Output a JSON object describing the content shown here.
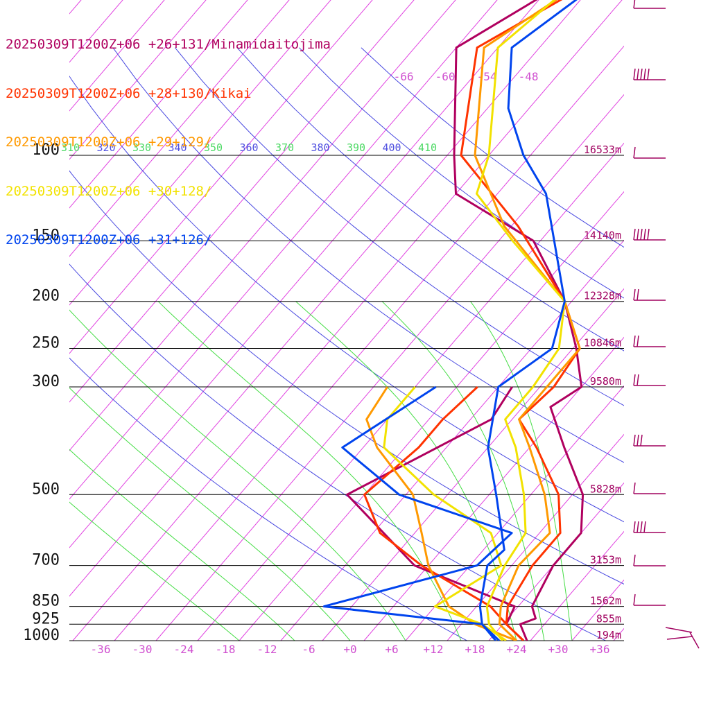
{
  "legend": [
    {
      "label": "20250309T1200Z+06 +26+131/Minamidaitojima",
      "color": "#b0005f"
    },
    {
      "label": "20250309T1200Z+06 +28+130/Kikai",
      "color": "#ff3300"
    },
    {
      "label": "20250309T1200Z+06 +29+129/",
      "color": "#ff9900"
    },
    {
      "label": "20250309T1200Z+06 +30+128/",
      "color": "#f2e200"
    },
    {
      "label": "20250309T1200Z+06 +31+126/",
      "color": "#0044ee"
    }
  ],
  "chart_data": {
    "type": "line",
    "pressure_levels": [
      {
        "label": "100",
        "p": 100
      },
      {
        "label": "150",
        "p": 150
      },
      {
        "label": "200",
        "p": 200
      },
      {
        "label": "250",
        "p": 250
      },
      {
        "label": "300",
        "p": 300
      },
      {
        "label": "500",
        "p": 500
      },
      {
        "label": "700",
        "p": 700
      },
      {
        "label": "850",
        "p": 850
      },
      {
        "label": "925",
        "p": 925
      },
      {
        "label": "1000",
        "p": 1000
      }
    ],
    "height_labels": [
      {
        "p": 100,
        "label": "16533m"
      },
      {
        "p": 150,
        "label": "14140m"
      },
      {
        "p": 200,
        "label": "12328m"
      },
      {
        "p": 250,
        "label": "10846m"
      },
      {
        "p": 300,
        "label": "9580m"
      },
      {
        "p": 500,
        "label": "5828m"
      },
      {
        "p": 700,
        "label": "3153m"
      },
      {
        "p": 850,
        "label": "1562m"
      },
      {
        "p": 925,
        "label": "855m"
      },
      {
        "p": 1000,
        "label": "194m"
      }
    ],
    "temperature_ticks": [
      "-36",
      "-30",
      "-24",
      "-18",
      "-12",
      "-6",
      "+0",
      "+6",
      "+12",
      "+18",
      "+24",
      "+30",
      "+36"
    ],
    "upper_temperature_labels": [
      "-66",
      "-60",
      "-54",
      "-48"
    ],
    "theta_e_labels": [
      {
        "label": "310",
        "color": "#4cd964"
      },
      {
        "label": "320",
        "color": "#5050e0"
      },
      {
        "label": "330",
        "color": "#4cd964"
      },
      {
        "label": "340",
        "color": "#5050e0"
      },
      {
        "label": "350",
        "color": "#4cd964"
      },
      {
        "label": "360",
        "color": "#5050e0"
      },
      {
        "label": "370",
        "color": "#4cd964"
      },
      {
        "label": "380",
        "color": "#5050e0"
      },
      {
        "label": "390",
        "color": "#4cd964"
      },
      {
        "label": "400",
        "color": "#5050e0"
      },
      {
        "label": "410",
        "color": "#4cd964"
      }
    ],
    "series": [
      {
        "name": "20250309T1200Z+06 +26+131/Minamidaitojima",
        "color": "#b0005f",
        "temperature": [
          [
            1000,
            25.5
          ],
          [
            925,
            22.5
          ],
          [
            900,
            24
          ],
          [
            850,
            22
          ],
          [
            700,
            20
          ],
          [
            600,
            20
          ],
          [
            500,
            15.5
          ],
          [
            400,
            7
          ],
          [
            330,
            0
          ],
          [
            300,
            2
          ],
          [
            250,
            -3.5
          ],
          [
            200,
            -11
          ],
          [
            150,
            -23
          ],
          [
            120,
            -40
          ],
          [
            100,
            -45
          ],
          [
            60,
            -58
          ],
          [
            40,
            -48
          ],
          [
            30,
            -42
          ],
          [
            25,
            -35
          ]
        ],
        "dewpoint": [
          [
            1000,
            25
          ],
          [
            925,
            20.5
          ],
          [
            850,
            19.5
          ],
          [
            700,
            0
          ],
          [
            500,
            -18.5
          ],
          [
            350,
            -7
          ],
          [
            300,
            -8
          ]
        ]
      },
      {
        "name": "20250309T1200Z+06 +28+130/Kikai",
        "color": "#ff3300",
        "temperature": [
          [
            1000,
            25
          ],
          [
            925,
            20.5
          ],
          [
            850,
            18.5
          ],
          [
            700,
            17
          ],
          [
            600,
            17
          ],
          [
            500,
            12
          ],
          [
            400,
            3
          ],
          [
            350,
            -3
          ],
          [
            300,
            -2
          ],
          [
            250,
            -3
          ],
          [
            200,
            -11
          ],
          [
            140,
            -27
          ],
          [
            100,
            -44
          ],
          [
            60,
            -55
          ],
          [
            40,
            -44
          ],
          [
            25,
            -37
          ]
        ],
        "dewpoint": [
          [
            1000,
            25
          ],
          [
            925,
            20.5
          ],
          [
            850,
            16
          ],
          [
            700,
            1
          ],
          [
            600,
            -9
          ],
          [
            500,
            -16
          ],
          [
            400,
            -14
          ],
          [
            350,
            -14
          ],
          [
            300,
            -13
          ]
        ]
      },
      {
        "name": "20250309T1200Z+06 +29+129/",
        "color": "#ff9900",
        "temperature": [
          [
            1000,
            24
          ],
          [
            925,
            19.5
          ],
          [
            850,
            17.5
          ],
          [
            700,
            15
          ],
          [
            600,
            15.5
          ],
          [
            500,
            10
          ],
          [
            400,
            2
          ],
          [
            350,
            -3
          ],
          [
            300,
            -3
          ],
          [
            250,
            -3
          ],
          [
            200,
            -11
          ],
          [
            140,
            -29
          ],
          [
            100,
            -42
          ],
          [
            60,
            -54
          ],
          [
            40,
            -46
          ],
          [
            25,
            -38
          ]
        ],
        "dewpoint": [
          [
            1000,
            24
          ],
          [
            925,
            16
          ],
          [
            850,
            10
          ],
          [
            700,
            2
          ],
          [
            600,
            -3
          ],
          [
            500,
            -9
          ],
          [
            400,
            -20
          ],
          [
            350,
            -25
          ],
          [
            300,
            -26
          ]
        ]
      },
      {
        "name": "20250309T1200Z+06 +30+128/",
        "color": "#f2e200",
        "temperature": [
          [
            1000,
            22
          ],
          [
            925,
            18
          ],
          [
            850,
            15.5
          ],
          [
            700,
            13
          ],
          [
            600,
            12
          ],
          [
            500,
            7
          ],
          [
            400,
            0
          ],
          [
            350,
            -5
          ],
          [
            300,
            -5
          ],
          [
            250,
            -6
          ],
          [
            200,
            -11
          ],
          [
            150,
            -26
          ],
          [
            120,
            -37
          ],
          [
            100,
            -40
          ],
          [
            60,
            -52
          ],
          [
            40,
            -48
          ],
          [
            30,
            -46
          ],
          [
            25,
            -42
          ]
        ],
        "dewpoint": [
          [
            1000,
            22.5
          ],
          [
            925,
            17
          ],
          [
            850,
            8
          ],
          [
            700,
            12.5
          ],
          [
            600,
            7
          ],
          [
            500,
            -6
          ],
          [
            400,
            -19
          ],
          [
            350,
            -22
          ],
          [
            300,
            -22
          ]
        ]
      },
      {
        "name": "20250309T1200Z+06 +31+126/",
        "color": "#0044ee",
        "temperature": [
          [
            1000,
            21
          ],
          [
            925,
            17
          ],
          [
            850,
            14.5
          ],
          [
            700,
            10.5
          ],
          [
            650,
            11
          ],
          [
            500,
            3
          ],
          [
            400,
            -4
          ],
          [
            300,
            -10
          ],
          [
            250,
            -7
          ],
          [
            200,
            -11
          ],
          [
            150,
            -20
          ],
          [
            120,
            -27
          ],
          [
            100,
            -35
          ],
          [
            80,
            -43
          ],
          [
            60,
            -50
          ],
          [
            40,
            -44
          ],
          [
            30,
            -42
          ],
          [
            25,
            -38
          ]
        ],
        "dewpoint": [
          [
            1000,
            21.5
          ],
          [
            925,
            17
          ],
          [
            850,
            -8
          ],
          [
            700,
            9
          ],
          [
            600,
            10
          ],
          [
            500,
            -11
          ],
          [
            400,
            -25
          ],
          [
            300,
            -19
          ]
        ]
      }
    ]
  },
  "colors": {
    "isotherm": "#e040e0",
    "dry_adiabat": "#4848e0",
    "moist_adiabat": "#44dd44",
    "isobar": "#000000",
    "pressure_label": "#111111",
    "tick_label": "#d050d0",
    "height_label": "#a0005f",
    "wind_barb": "#a0005f"
  }
}
